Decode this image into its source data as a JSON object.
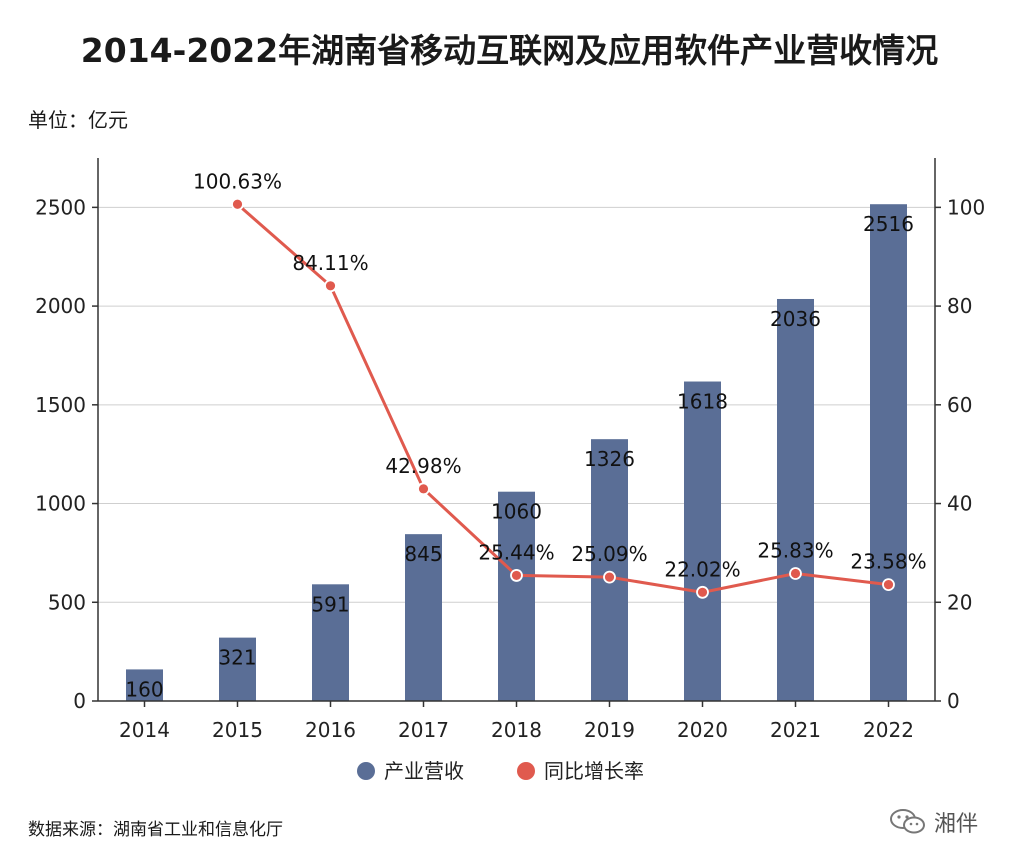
{
  "title": "2014-2022年湖南省移动互联网及应用软件产业营收情况",
  "unit": "单位：亿元",
  "source": "数据来源：湖南省工业和信息化厅",
  "watermark": "湘伴",
  "colors": {
    "bar": "#5a6e96",
    "line": "#e05a4e",
    "grid": "#cfcfcf"
  },
  "chart_data": {
    "type": "bar",
    "categories": [
      "2014",
      "2015",
      "2016",
      "2017",
      "2018",
      "2019",
      "2020",
      "2021",
      "2022"
    ],
    "series": [
      {
        "name": "产业营收",
        "type": "bar",
        "axis": "left",
        "values": [
          160,
          321,
          591,
          845,
          1060,
          1326,
          1618,
          2036,
          2516
        ],
        "labels": [
          "160",
          "321",
          "591",
          "845",
          "1060",
          "1326",
          "1618",
          "2036",
          "2516"
        ]
      },
      {
        "name": "同比增长率",
        "type": "line",
        "axis": "right",
        "values": [
          null,
          100.63,
          84.11,
          42.98,
          25.44,
          25.09,
          22.02,
          25.83,
          23.58
        ],
        "labels": [
          "",
          "100.63%",
          "84.11%",
          "42.98%",
          "25.44%",
          "25.09%",
          "22.02%",
          "25.83%",
          "23.58%"
        ]
      }
    ],
    "y_left": {
      "ylim": [
        0,
        2750
      ],
      "ticks": [
        0,
        500,
        1000,
        1500,
        2000,
        2500
      ]
    },
    "y_right": {
      "ylim": [
        0,
        110
      ],
      "ticks": [
        0,
        20,
        40,
        60,
        80,
        100
      ]
    },
    "grid": true,
    "legend": "bottom-center"
  }
}
